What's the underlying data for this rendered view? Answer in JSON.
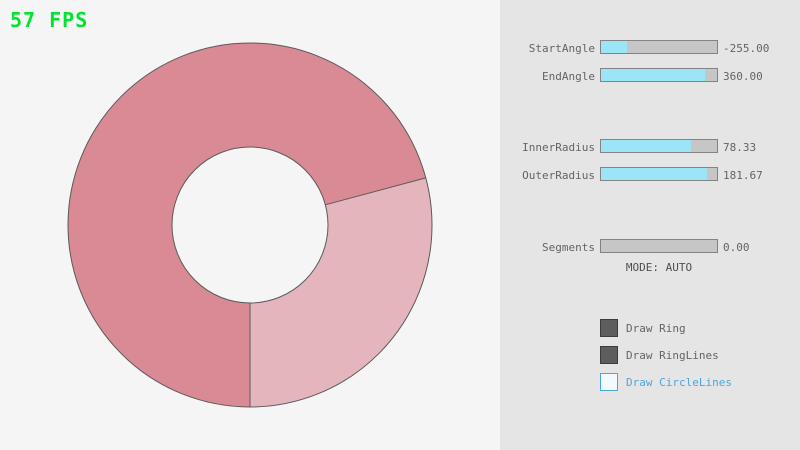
{
  "fps_label": "57 FPS",
  "colors": {
    "fps_green": "#00e430",
    "ring_dark": "#d98a94",
    "ring_light": "#e5b5bd",
    "ring_outline": "#5a5a5a",
    "slider_fill": "#9ce4f8",
    "focus_blue": "#4ea6d9",
    "text_gray": "#646464"
  },
  "controls": {
    "sliders": [
      {
        "label": "StartAngle",
        "value_text": "-255.00",
        "fill_pct": 22
      },
      {
        "label": "EndAngle",
        "value_text": "360.00",
        "fill_pct": 90
      },
      {
        "label": "InnerRadius",
        "value_text": "78.33",
        "fill_pct": 78
      },
      {
        "label": "OuterRadius",
        "value_text": "181.67",
        "fill_pct": 91
      },
      {
        "label": "Segments",
        "value_text": "0.00",
        "fill_pct": 0
      }
    ],
    "mode_text": "MODE: AUTO",
    "checkboxes": [
      {
        "label": "Draw Ring",
        "checked": true
      },
      {
        "label": "Draw RingLines",
        "checked": true
      },
      {
        "label": "Draw CircleLines",
        "checked": false
      }
    ]
  }
}
